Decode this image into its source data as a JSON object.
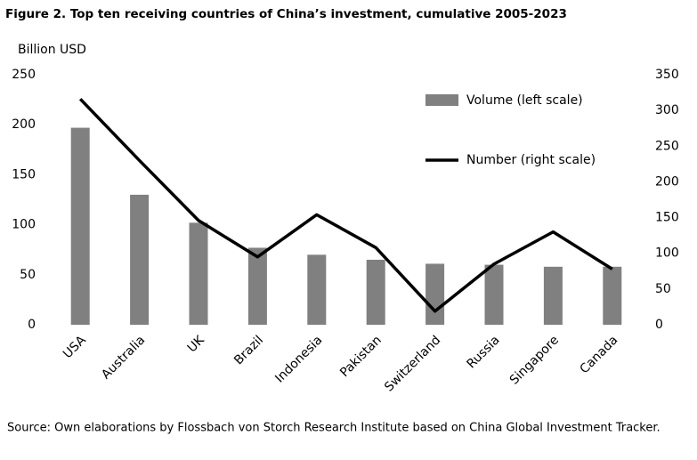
{
  "chart_data": {
    "type": "bar_line",
    "title": "Figure 2. Top ten receiving countries of China’s investment, cumulative 2005-2023",
    "y_label": "Billion USD",
    "source": "Source: Own elaborations by Flossbach von Storch Research Institute based on China Global Investment Tracker.",
    "categories": [
      "USA",
      "Australia",
      "UK",
      "Brazil",
      "Indonesia",
      "Pakistan",
      "Switzerland",
      "Russia",
      "Singapore",
      "Canada"
    ],
    "series": [
      {
        "name": "Volume (left scale)",
        "color": "#808080",
        "type": "bar",
        "values": [
          197,
          130,
          102,
          77,
          70,
          65,
          61,
          60,
          58,
          58
        ]
      },
      {
        "name": "Number (right scale)",
        "color": "#000000",
        "type": "line",
        "axis": "y2",
        "values": [
          316,
          230,
          146,
          95,
          154,
          108,
          19,
          85,
          130,
          78
        ]
      }
    ],
    "ylim": [
      0,
      250
    ],
    "yticks": [
      0,
      50,
      100,
      150,
      200,
      250
    ],
    "y2lim": [
      0,
      350
    ],
    "y2ticks": [
      0,
      50,
      100,
      150,
      200,
      250,
      300,
      350
    ]
  }
}
